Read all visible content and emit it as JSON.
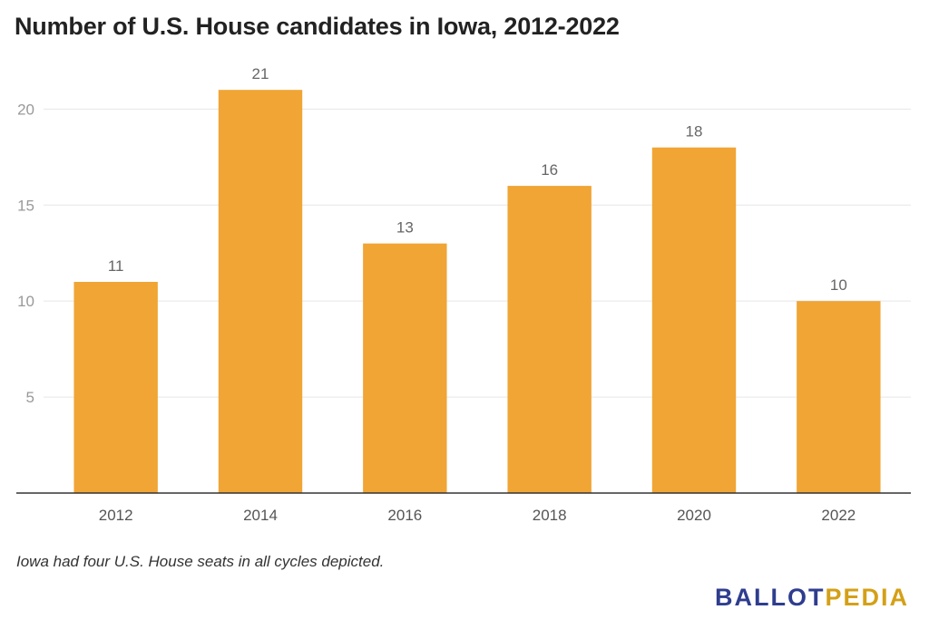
{
  "title": "Number of U.S. House candidates in Iowa, 2012-2022",
  "note": "Iowa had four U.S. House seats in all cycles depicted.",
  "brand": {
    "part1": "BALLOT",
    "part2": "PEDIA"
  },
  "colors": {
    "bar": "#f0a535",
    "grid": "#e6e6e6",
    "axis": "#333333"
  },
  "chart_data": {
    "type": "bar",
    "title": "Number of U.S. House candidates in Iowa, 2012-2022",
    "categories": [
      "2012",
      "2014",
      "2016",
      "2018",
      "2020",
      "2022"
    ],
    "values": [
      11,
      21,
      13,
      16,
      18,
      10
    ],
    "ylim": [
      0,
      22
    ],
    "yticks": [
      5,
      10,
      15,
      20
    ],
    "grid": true,
    "data_labels": true
  }
}
